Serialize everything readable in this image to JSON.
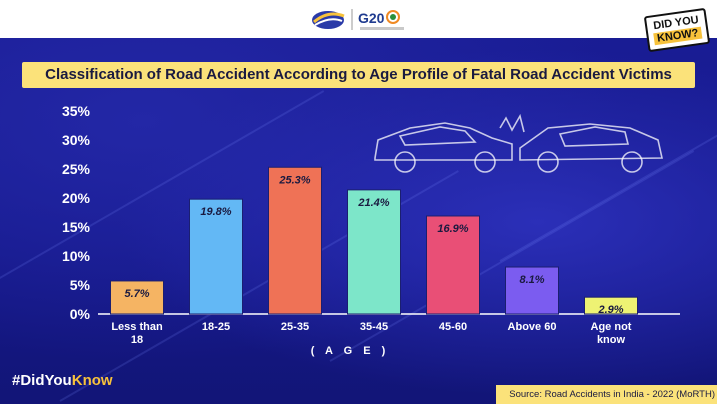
{
  "header": {
    "logo_text": "G20"
  },
  "badge": {
    "line1": "DID YOU",
    "line2": "KNOW?"
  },
  "footer": {
    "hashtag_prefix": "#DidYou",
    "hashtag_suffix": "Know",
    "source": "Source: Road Accidents in India - 2022 (MoRTH)"
  },
  "colors": {
    "background": "#161a8c",
    "title_band": "#fbe27a",
    "accent": "#f7c23b"
  },
  "chart_data": {
    "type": "bar",
    "title": "Classification of Road Accident According to Age Profile of Fatal Road Accident Victims",
    "xlabel": "( A G E )",
    "ylabel": "",
    "ylim": [
      0,
      35
    ],
    "yticks": [
      0,
      5,
      10,
      15,
      20,
      25,
      30,
      35
    ],
    "ytick_labels": [
      "0%",
      "5%",
      "10%",
      "15%",
      "20%",
      "25%",
      "30%",
      "35%"
    ],
    "grid": false,
    "categories": [
      [
        "Less than",
        "18"
      ],
      [
        "18-25"
      ],
      [
        "25-35"
      ],
      [
        "35-45"
      ],
      [
        "45-60"
      ],
      [
        "Above 60"
      ],
      [
        "Age not",
        "know"
      ]
    ],
    "values": [
      5.7,
      19.8,
      25.3,
      21.4,
      16.9,
      8.1,
      2.9
    ],
    "data_labels": [
      "5.7%",
      "19.8%",
      "25.3%",
      "21.4%",
      "16.9%",
      "8.1%",
      "2.9%"
    ],
    "bar_colors": [
      "#f5b463",
      "#63b8f5",
      "#ef7256",
      "#7de6c9",
      "#e94f76",
      "#7b5cf0",
      "#eef273"
    ]
  }
}
